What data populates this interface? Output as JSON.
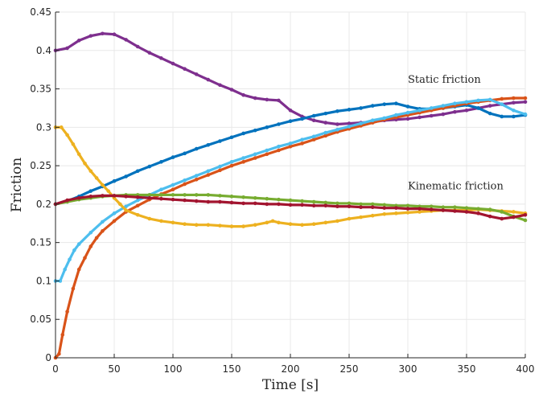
{
  "chart_data": {
    "type": "line",
    "title": "",
    "xlabel": "Time [s]",
    "ylabel": "Friction",
    "xlim": [
      0,
      400
    ],
    "ylim": [
      0,
      0.45
    ],
    "x_ticks": [
      "0",
      "50",
      "100",
      "150",
      "200",
      "250",
      "300",
      "350",
      "400"
    ],
    "y_ticks": [
      "0",
      "0.05",
      "0.1",
      "0.15",
      "0.2",
      "0.25",
      "0.3",
      "0.35",
      "0.4",
      "0.45"
    ],
    "grid": true,
    "annotations": [
      {
        "text": "Static friction",
        "x": 300,
        "y": 0.358
      },
      {
        "text": "Kinematic friction",
        "x": 300,
        "y": 0.219
      }
    ],
    "series": [
      {
        "color": "#7E2F8E",
        "points": [
          [
            0,
            0.4
          ],
          [
            10,
            0.403
          ],
          [
            20,
            0.413
          ],
          [
            30,
            0.419
          ],
          [
            40,
            0.422
          ],
          [
            50,
            0.421
          ],
          [
            60,
            0.414
          ],
          [
            70,
            0.405
          ],
          [
            80,
            0.397
          ],
          [
            90,
            0.39
          ],
          [
            100,
            0.383
          ],
          [
            110,
            0.376
          ],
          [
            120,
            0.369
          ],
          [
            130,
            0.362
          ],
          [
            140,
            0.355
          ],
          [
            150,
            0.349
          ],
          [
            160,
            0.342
          ],
          [
            170,
            0.338
          ],
          [
            180,
            0.336
          ],
          [
            190,
            0.335
          ],
          [
            200,
            0.322
          ],
          [
            210,
            0.314
          ],
          [
            220,
            0.309
          ],
          [
            230,
            0.306
          ],
          [
            240,
            0.304
          ],
          [
            250,
            0.305
          ],
          [
            260,
            0.306
          ],
          [
            270,
            0.307
          ],
          [
            280,
            0.309
          ],
          [
            290,
            0.31
          ],
          [
            300,
            0.311
          ],
          [
            310,
            0.313
          ],
          [
            320,
            0.315
          ],
          [
            330,
            0.317
          ],
          [
            340,
            0.32
          ],
          [
            350,
            0.322
          ],
          [
            360,
            0.325
          ],
          [
            370,
            0.328
          ],
          [
            380,
            0.33
          ],
          [
            390,
            0.332
          ],
          [
            400,
            0.333
          ]
        ]
      },
      {
        "color": "#0072BD",
        "points": [
          [
            0,
            0.2
          ],
          [
            10,
            0.204
          ],
          [
            20,
            0.21
          ],
          [
            30,
            0.217
          ],
          [
            40,
            0.223
          ],
          [
            50,
            0.23
          ],
          [
            60,
            0.236
          ],
          [
            70,
            0.243
          ],
          [
            80,
            0.249
          ],
          [
            90,
            0.255
          ],
          [
            100,
            0.261
          ],
          [
            110,
            0.266
          ],
          [
            120,
            0.272
          ],
          [
            130,
            0.277
          ],
          [
            140,
            0.282
          ],
          [
            150,
            0.287
          ],
          [
            160,
            0.292
          ],
          [
            170,
            0.296
          ],
          [
            180,
            0.3
          ],
          [
            190,
            0.304
          ],
          [
            200,
            0.308
          ],
          [
            210,
            0.311
          ],
          [
            220,
            0.315
          ],
          [
            230,
            0.318
          ],
          [
            240,
            0.321
          ],
          [
            250,
            0.323
          ],
          [
            260,
            0.325
          ],
          [
            270,
            0.328
          ],
          [
            280,
            0.33
          ],
          [
            290,
            0.331
          ],
          [
            300,
            0.327
          ],
          [
            310,
            0.324
          ],
          [
            320,
            0.324
          ],
          [
            330,
            0.325
          ],
          [
            340,
            0.327
          ],
          [
            350,
            0.329
          ],
          [
            360,
            0.325
          ],
          [
            370,
            0.318
          ],
          [
            380,
            0.314
          ],
          [
            390,
            0.314
          ],
          [
            400,
            0.316
          ]
        ]
      },
      {
        "color": "#D95319",
        "points": [
          [
            0,
            0.0
          ],
          [
            3,
            0.005
          ],
          [
            6,
            0.03
          ],
          [
            10,
            0.06
          ],
          [
            15,
            0.09
          ],
          [
            20,
            0.115
          ],
          [
            25,
            0.13
          ],
          [
            30,
            0.145
          ],
          [
            35,
            0.156
          ],
          [
            40,
            0.165
          ],
          [
            50,
            0.178
          ],
          [
            60,
            0.19
          ],
          [
            70,
            0.198
          ],
          [
            80,
            0.206
          ],
          [
            90,
            0.213
          ],
          [
            100,
            0.219
          ],
          [
            110,
            0.226
          ],
          [
            120,
            0.232
          ],
          [
            130,
            0.238
          ],
          [
            140,
            0.244
          ],
          [
            150,
            0.25
          ],
          [
            160,
            0.255
          ],
          [
            170,
            0.26
          ],
          [
            180,
            0.265
          ],
          [
            190,
            0.27
          ],
          [
            200,
            0.275
          ],
          [
            210,
            0.279
          ],
          [
            220,
            0.284
          ],
          [
            230,
            0.289
          ],
          [
            240,
            0.294
          ],
          [
            250,
            0.298
          ],
          [
            260,
            0.302
          ],
          [
            270,
            0.306
          ],
          [
            280,
            0.31
          ],
          [
            290,
            0.313
          ],
          [
            300,
            0.316
          ],
          [
            310,
            0.319
          ],
          [
            320,
            0.322
          ],
          [
            330,
            0.325
          ],
          [
            340,
            0.328
          ],
          [
            350,
            0.331
          ],
          [
            360,
            0.333
          ],
          [
            370,
            0.335
          ],
          [
            380,
            0.337
          ],
          [
            390,
            0.338
          ],
          [
            400,
            0.338
          ]
        ]
      },
      {
        "color": "#4DBEEE",
        "points": [
          [
            0,
            0.1
          ],
          [
            4,
            0.1
          ],
          [
            8,
            0.115
          ],
          [
            12,
            0.128
          ],
          [
            16,
            0.14
          ],
          [
            20,
            0.148
          ],
          [
            30,
            0.163
          ],
          [
            40,
            0.177
          ],
          [
            50,
            0.188
          ],
          [
            60,
            0.197
          ],
          [
            70,
            0.205
          ],
          [
            80,
            0.212
          ],
          [
            90,
            0.219
          ],
          [
            100,
            0.225
          ],
          [
            110,
            0.231
          ],
          [
            120,
            0.237
          ],
          [
            130,
            0.243
          ],
          [
            140,
            0.249
          ],
          [
            150,
            0.255
          ],
          [
            160,
            0.26
          ],
          [
            170,
            0.265
          ],
          [
            180,
            0.27
          ],
          [
            190,
            0.275
          ],
          [
            200,
            0.279
          ],
          [
            210,
            0.284
          ],
          [
            220,
            0.288
          ],
          [
            230,
            0.293
          ],
          [
            240,
            0.297
          ],
          [
            250,
            0.301
          ],
          [
            260,
            0.305
          ],
          [
            270,
            0.309
          ],
          [
            280,
            0.312
          ],
          [
            290,
            0.316
          ],
          [
            300,
            0.319
          ],
          [
            310,
            0.322
          ],
          [
            320,
            0.325
          ],
          [
            330,
            0.328
          ],
          [
            340,
            0.331
          ],
          [
            350,
            0.333
          ],
          [
            360,
            0.335
          ],
          [
            370,
            0.336
          ],
          [
            380,
            0.33
          ],
          [
            390,
            0.322
          ],
          [
            400,
            0.317
          ]
        ]
      },
      {
        "color": "#EDB120",
        "points": [
          [
            0,
            0.3
          ],
          [
            5,
            0.3
          ],
          [
            10,
            0.29
          ],
          [
            15,
            0.278
          ],
          [
            20,
            0.265
          ],
          [
            25,
            0.253
          ],
          [
            30,
            0.243
          ],
          [
            35,
            0.234
          ],
          [
            40,
            0.225
          ],
          [
            45,
            0.217
          ],
          [
            50,
            0.208
          ],
          [
            55,
            0.2
          ],
          [
            60,
            0.192
          ],
          [
            70,
            0.186
          ],
          [
            80,
            0.181
          ],
          [
            90,
            0.178
          ],
          [
            100,
            0.176
          ],
          [
            110,
            0.174
          ],
          [
            120,
            0.173
          ],
          [
            130,
            0.173
          ],
          [
            140,
            0.172
          ],
          [
            150,
            0.171
          ],
          [
            160,
            0.171
          ],
          [
            170,
            0.173
          ],
          [
            180,
            0.176
          ],
          [
            185,
            0.178
          ],
          [
            190,
            0.176
          ],
          [
            200,
            0.174
          ],
          [
            210,
            0.173
          ],
          [
            220,
            0.174
          ],
          [
            230,
            0.176
          ],
          [
            240,
            0.178
          ],
          [
            250,
            0.181
          ],
          [
            260,
            0.183
          ],
          [
            270,
            0.185
          ],
          [
            280,
            0.187
          ],
          [
            290,
            0.188
          ],
          [
            300,
            0.189
          ],
          [
            310,
            0.19
          ],
          [
            320,
            0.191
          ],
          [
            330,
            0.192
          ],
          [
            340,
            0.192
          ],
          [
            350,
            0.192
          ],
          [
            360,
            0.193
          ],
          [
            370,
            0.192
          ],
          [
            380,
            0.191
          ],
          [
            390,
            0.19
          ],
          [
            400,
            0.188
          ]
        ]
      },
      {
        "color": "#77AC30",
        "points": [
          [
            0,
            0.2
          ],
          [
            10,
            0.203
          ],
          [
            20,
            0.206
          ],
          [
            30,
            0.208
          ],
          [
            40,
            0.21
          ],
          [
            50,
            0.211
          ],
          [
            60,
            0.212
          ],
          [
            70,
            0.212
          ],
          [
            80,
            0.212
          ],
          [
            90,
            0.212
          ],
          [
            100,
            0.212
          ],
          [
            110,
            0.212
          ],
          [
            120,
            0.212
          ],
          [
            130,
            0.212
          ],
          [
            140,
            0.211
          ],
          [
            150,
            0.21
          ],
          [
            160,
            0.209
          ],
          [
            170,
            0.208
          ],
          [
            180,
            0.207
          ],
          [
            190,
            0.206
          ],
          [
            200,
            0.205
          ],
          [
            210,
            0.204
          ],
          [
            220,
            0.203
          ],
          [
            230,
            0.202
          ],
          [
            240,
            0.201
          ],
          [
            250,
            0.201
          ],
          [
            260,
            0.2
          ],
          [
            270,
            0.2
          ],
          [
            280,
            0.199
          ],
          [
            290,
            0.198
          ],
          [
            300,
            0.198
          ],
          [
            310,
            0.197
          ],
          [
            320,
            0.197
          ],
          [
            330,
            0.196
          ],
          [
            340,
            0.196
          ],
          [
            350,
            0.195
          ],
          [
            360,
            0.194
          ],
          [
            370,
            0.193
          ],
          [
            380,
            0.19
          ],
          [
            390,
            0.184
          ],
          [
            400,
            0.179
          ]
        ]
      },
      {
        "color": "#A2142F",
        "points": [
          [
            0,
            0.2
          ],
          [
            10,
            0.205
          ],
          [
            20,
            0.208
          ],
          [
            30,
            0.21
          ],
          [
            40,
            0.211
          ],
          [
            50,
            0.211
          ],
          [
            60,
            0.21
          ],
          [
            70,
            0.209
          ],
          [
            80,
            0.208
          ],
          [
            90,
            0.207
          ],
          [
            100,
            0.206
          ],
          [
            110,
            0.205
          ],
          [
            120,
            0.204
          ],
          [
            130,
            0.203
          ],
          [
            140,
            0.203
          ],
          [
            150,
            0.202
          ],
          [
            160,
            0.201
          ],
          [
            170,
            0.201
          ],
          [
            180,
            0.2
          ],
          [
            190,
            0.2
          ],
          [
            200,
            0.199
          ],
          [
            210,
            0.199
          ],
          [
            220,
            0.198
          ],
          [
            230,
            0.198
          ],
          [
            240,
            0.197
          ],
          [
            250,
            0.197
          ],
          [
            260,
            0.196
          ],
          [
            270,
            0.196
          ],
          [
            280,
            0.195
          ],
          [
            290,
            0.195
          ],
          [
            300,
            0.194
          ],
          [
            310,
            0.194
          ],
          [
            320,
            0.193
          ],
          [
            330,
            0.192
          ],
          [
            340,
            0.191
          ],
          [
            350,
            0.19
          ],
          [
            360,
            0.188
          ],
          [
            370,
            0.184
          ],
          [
            380,
            0.181
          ],
          [
            390,
            0.183
          ],
          [
            400,
            0.186
          ]
        ]
      }
    ]
  }
}
